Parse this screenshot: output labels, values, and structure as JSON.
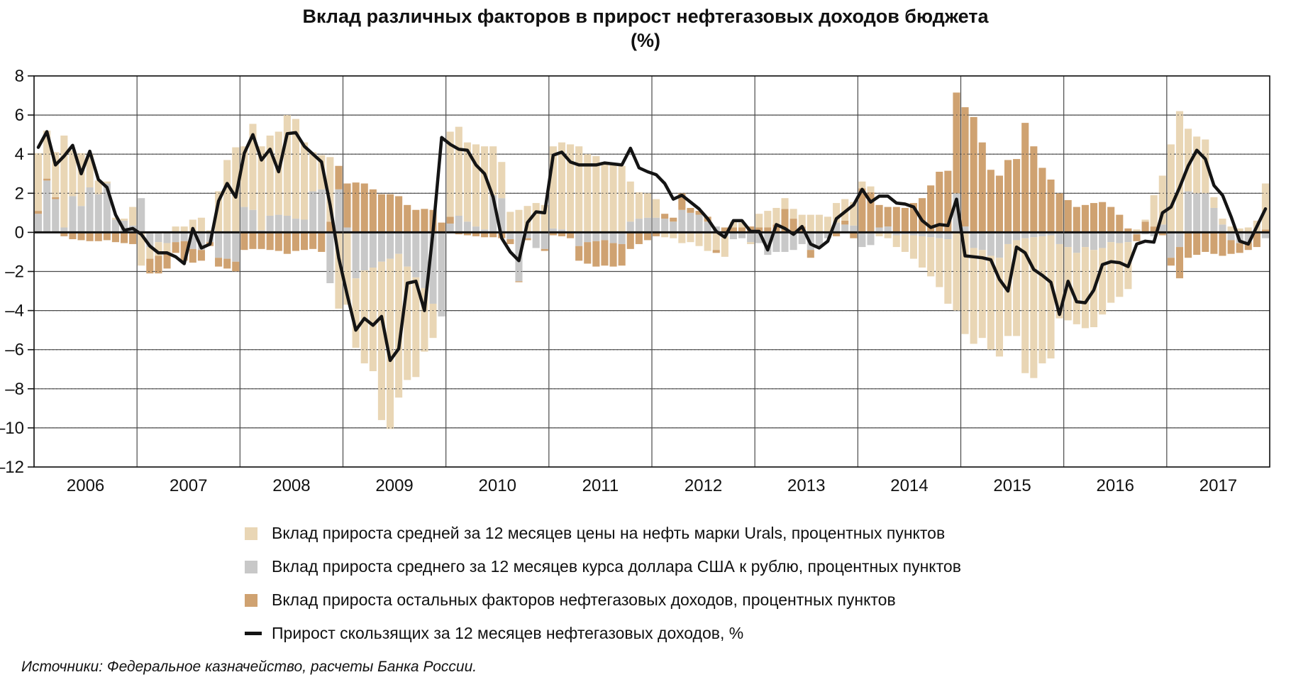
{
  "title": {
    "line1": "Вклад различных факторов в прирост нефтегазовых доходов бюджета",
    "line2": "(%)"
  },
  "source": "Источники: Федеральное казначейство, расчеты Банка России.",
  "colors": {
    "oil": "#e9d6b5",
    "fx": "#c8c8c8",
    "other": "#cfa271",
    "line": "#141414",
    "grid": "#4a4a4a",
    "axis": "#141414"
  },
  "legend": [
    {
      "marker": "swatch",
      "color_key": "oil",
      "label": "Вклад прироста средней за 12 месяцев цены на нефть марки Urals, процентных пунктов"
    },
    {
      "marker": "swatch",
      "color_key": "fx",
      "label": "Вклад прироста среднего за 12 месяцев курса доллара США к рублю, процентных пунктов"
    },
    {
      "marker": "swatch",
      "color_key": "other",
      "label": "Вклад прироста остальных факторов нефтегазовых доходов, процентных пунктов"
    },
    {
      "marker": "line",
      "color_key": "line",
      "label": "Прирост скользящих за 12 месяцев нефтегазовых доходов, %"
    }
  ],
  "chart_data": {
    "type": "bar",
    "subtype": "stacked-bars-with-line",
    "title": "Вклад различных факторов в прирост нефтегазовых доходов бюджета (%)",
    "x_start": "2006-01",
    "x_end": "2017-12",
    "year_labels": [
      "2006",
      "2007",
      "2008",
      "2009",
      "2010",
      "2011",
      "2012",
      "2013",
      "2014",
      "2015",
      "2016",
      "2017"
    ],
    "ylim": [
      -12,
      8
    ],
    "ytick_step": 2,
    "ytick_labels": [
      "8",
      "6",
      "4",
      "2",
      "0",
      "–2",
      "–4",
      "–6",
      "–8",
      "–10",
      "–12"
    ],
    "grid": "on",
    "legend_position": "bottom",
    "series": [
      {
        "name": "Вклад прироста средней за 12 месяцев цены на нефть марки Urals, процентных пунктов",
        "type": "bar",
        "color_key": "oil",
        "values": [
          2.95,
          2.45,
          2.3,
          4.7,
          2.35,
          2.7,
          1.7,
          0.7,
          0.1,
          0.1,
          0.1,
          0.95,
          -1.7,
          -0.6,
          -0.7,
          -0.55,
          0.3,
          0.3,
          0.65,
          0.75,
          0.1,
          2.1,
          3.7,
          4.35,
          3.1,
          4.4,
          4.3,
          4.1,
          4.25,
          5.15,
          5.1,
          3.95,
          2.0,
          1.75,
          3.3,
          -3.9,
          -3.7,
          -3.55,
          -4.75,
          -5.3,
          -8.1,
          -8.7,
          -7.35,
          -5.8,
          -5.1,
          -3.25,
          -1.75,
          0,
          4.35,
          4.55,
          4.05,
          4.2,
          4.25,
          2.5,
          1.85,
          1.05,
          1.15,
          1.35,
          1.5,
          1.4,
          4.2,
          4.45,
          4.5,
          4.4,
          4.0,
          3.9,
          3.6,
          3.5,
          3.4,
          2.05,
          1.35,
          1.25,
          0.95,
          -0.25,
          -0.3,
          -0.55,
          -0.5,
          -0.7,
          -0.95,
          -0.9,
          -1.05,
          0.3,
          0.25,
          -0.1,
          0.7,
          0.85,
          0.85,
          0.55,
          0.5,
          0.6,
          0.9,
          0.9,
          0.8,
          1.0,
          1.1,
          1.2,
          0.35,
          0.3,
          -0.2,
          -0.3,
          -0.6,
          -0.9,
          -1.2,
          -1.6,
          -2.0,
          -2.5,
          -3.3,
          -4.0,
          -5.2,
          -4.9,
          -4.5,
          -4.8,
          -5.05,
          -4.7,
          -4.9,
          -6.9,
          -7.2,
          -6.5,
          -6.3,
          -3.8,
          -3.75,
          -3.65,
          -4.15,
          -3.95,
          -3.4,
          -3.1,
          -2.75,
          -2.4,
          0.15,
          0.1,
          1.6,
          2.5,
          4.5,
          6.2,
          3.2,
          2.9,
          2.75,
          0.55,
          0.3,
          0.3,
          0.2,
          0.25,
          0.55,
          2.35
        ]
      },
      {
        "name": "Вклад прироста среднего за 12 месяцев курса доллара США к рублю, процентных пунктов",
        "type": "bar",
        "color_key": "fx",
        "values": [
          0.95,
          2.65,
          1.7,
          0.25,
          1.85,
          1.35,
          2.3,
          1.95,
          2.5,
          0.65,
          0.6,
          0.35,
          1.75,
          -0.75,
          -0.5,
          -0.55,
          -0.5,
          -0.45,
          -0.85,
          -0.9,
          -0.5,
          -1.3,
          -1.35,
          -1.5,
          1.3,
          1.15,
          0.1,
          0.85,
          0.9,
          0.85,
          0.7,
          0.65,
          2.1,
          2.2,
          -2.6,
          2.2,
          0.25,
          -2.35,
          -1.95,
          -1.8,
          -1.5,
          -1.35,
          -1.1,
          -1.75,
          -2.3,
          -2.85,
          -3.65,
          -4.3,
          0.45,
          0.85,
          0.55,
          0.3,
          0.15,
          1.9,
          1.75,
          -0.35,
          -2.5,
          -0.3,
          -0.8,
          -0.85,
          0.2,
          0.15,
          0,
          -0.7,
          -0.5,
          -0.45,
          -0.4,
          -0.55,
          -0.6,
          0.55,
          0.7,
          0.75,
          0.75,
          0.7,
          0.55,
          1.15,
          1.0,
          0.9,
          0.55,
          0.3,
          -0.2,
          -0.35,
          -0.3,
          -0.5,
          -0.55,
          -1.15,
          -1.0,
          -1.0,
          -0.9,
          -0.6,
          -0.9,
          -0.7,
          -0.3,
          0.5,
          0.4,
          0.35,
          -0.75,
          -0.65,
          0.25,
          0.3,
          -0.15,
          -0.1,
          -0.15,
          -0.2,
          -0.25,
          -0.3,
          -0.35,
          2.0,
          0.3,
          -0.8,
          -0.9,
          -1.2,
          -1.3,
          -0.6,
          -0.4,
          -0.3,
          -0.25,
          -0.2,
          -0.15,
          -0.6,
          -0.75,
          -1.05,
          -0.75,
          -0.9,
          -0.8,
          -0.5,
          -0.55,
          -0.5,
          -0.1,
          -0.1,
          -0.2,
          0.4,
          -1.3,
          -0.75,
          2.1,
          2.0,
          2.0,
          1.25,
          0.4,
          -0.4,
          -0.55,
          -0.5,
          0.05,
          -0.3
        ]
      },
      {
        "name": "Вклад прироста остальных факторов нефтегазовых доходов, процентных пунктов",
        "type": "bar",
        "color_key": "other",
        "values": [
          0.15,
          0.1,
          0.1,
          -0.2,
          -0.35,
          -0.4,
          -0.45,
          -0.45,
          -0.4,
          -0.5,
          -0.55,
          -0.6,
          0,
          -0.75,
          -0.9,
          -0.75,
          -0.55,
          -1.0,
          -0.7,
          -0.55,
          -0.2,
          -0.45,
          -0.5,
          -0.5,
          -0.9,
          -0.85,
          -0.85,
          -0.9,
          -0.95,
          -1.1,
          -0.95,
          -0.9,
          -0.85,
          -1.0,
          0.55,
          1.2,
          2.25,
          2.55,
          2.5,
          2.2,
          1.95,
          1.95,
          1.85,
          1.4,
          1.15,
          1.2,
          1.15,
          0.5,
          0.35,
          -0.1,
          -0.15,
          -0.2,
          -0.25,
          -0.25,
          -0.3,
          -0.25,
          -0.05,
          -0.1,
          0,
          -0.1,
          -0.15,
          -0.2,
          -0.3,
          -0.75,
          -1.1,
          -1.3,
          -1.3,
          -1.2,
          -1.1,
          -0.85,
          -0.6,
          -0.4,
          -0.2,
          0.25,
          0.2,
          0.85,
          0.25,
          0.2,
          0.25,
          -0.15,
          0.25,
          0.25,
          0.25,
          0.3,
          0.25,
          0.25,
          0.4,
          1.2,
          0.7,
          0.3,
          -0.4,
          0,
          0,
          -0.2,
          0.2,
          -0.3,
          2.25,
          2.05,
          1.15,
          1.0,
          1.3,
          1.25,
          1.5,
          1.75,
          2.4,
          3.1,
          3.15,
          5.15,
          6.1,
          5.9,
          4.6,
          3.2,
          2.9,
          3.7,
          3.75,
          5.6,
          4.4,
          3.3,
          2.7,
          2.0,
          1.65,
          1.3,
          1.4,
          1.5,
          1.55,
          1.3,
          0.9,
          0.2,
          -0.35,
          0.55,
          0.3,
          -0.15,
          -0.4,
          -1.6,
          -1.3,
          -1.15,
          -1.0,
          -1.1,
          -1.2,
          -0.7,
          -0.5,
          -0.4,
          -0.75,
          0.15
        ]
      },
      {
        "name": "Прирост скользящих за 12 месяцев нефтегазовых доходов, %",
        "type": "line",
        "color_key": "line",
        "values": [
          4.35,
          5.15,
          3.45,
          3.9,
          4.45,
          3.0,
          4.15,
          2.7,
          2.3,
          0.9,
          0.1,
          0.2,
          -0.1,
          -0.7,
          -1.05,
          -1.05,
          -1.25,
          -1.6,
          0.2,
          -0.8,
          -0.6,
          1.6,
          2.5,
          1.8,
          4.05,
          5.0,
          3.7,
          4.25,
          3.1,
          5.05,
          5.1,
          4.4,
          4.0,
          3.6,
          1.4,
          -1.3,
          -3.2,
          -5.0,
          -4.4,
          -4.75,
          -4.3,
          -6.55,
          -5.95,
          -2.6,
          -2.5,
          -4.0,
          0.05,
          4.85,
          4.5,
          4.25,
          4.2,
          3.45,
          3.0,
          1.8,
          -0.3,
          -1.0,
          -1.45,
          0.5,
          1.05,
          1.0,
          3.95,
          4.1,
          3.6,
          3.45,
          3.45,
          3.45,
          3.55,
          3.5,
          3.45,
          4.3,
          3.3,
          3.1,
          2.95,
          2.5,
          1.7,
          1.9,
          1.55,
          1.2,
          0.7,
          0.05,
          -0.25,
          0.6,
          0.6,
          0.05,
          0.05,
          -0.9,
          0.4,
          0.2,
          -0.1,
          0.3,
          -0.6,
          -0.8,
          -0.45,
          0.7,
          1.05,
          1.4,
          2.2,
          1.55,
          1.85,
          1.85,
          1.5,
          1.45,
          1.3,
          0.6,
          0.25,
          0.4,
          0.35,
          1.7,
          -1.2,
          -1.25,
          -1.3,
          -1.4,
          -2.4,
          -3.0,
          -0.75,
          -1.05,
          -1.9,
          -2.2,
          -2.55,
          -4.2,
          -2.5,
          -3.55,
          -3.6,
          -2.95,
          -1.65,
          -1.5,
          -1.55,
          -1.75,
          -0.6,
          -0.45,
          -0.5,
          1.0,
          1.3,
          2.3,
          3.4,
          4.2,
          3.75,
          2.4,
          1.9,
          0.8,
          -0.45,
          -0.6,
          0.3,
          1.2
        ]
      }
    ]
  }
}
